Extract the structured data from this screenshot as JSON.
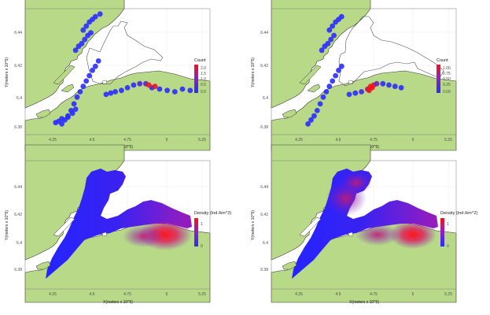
{
  "chart_data": [
    {
      "type": "scatter",
      "title": "",
      "xlabel": "X(meters x 10^5)",
      "ylabel": "Y(meters x 10^5)",
      "xticks": [
        "4.25",
        "4.5",
        "4.75",
        "5",
        "5.25"
      ],
      "yticks": [
        "6.44",
        "6.42",
        "6.4",
        "6.38"
      ],
      "xlim": [
        4.07,
        5.28
      ],
      "ylim": [
        6.362,
        6.456
      ],
      "legend": {
        "title": "Count",
        "labels": [
          "2.0",
          "1.5",
          "1.0",
          "0.5",
          "0.0"
        ],
        "placement": "right"
      },
      "x": [
        4.31,
        4.33,
        4.35,
        4.37,
        4.39,
        4.41,
        4.43,
        4.45,
        4.47,
        4.49,
        4.51,
        4.53,
        4.55,
        4.4,
        4.42,
        4.44,
        4.46,
        4.48,
        4.5,
        4.45,
        4.47,
        4.49,
        4.51,
        4.53,
        4.56,
        4.6,
        4.63,
        4.66,
        4.7,
        4.74,
        4.78,
        4.82,
        4.86,
        4.9,
        4.95,
        5.0,
        5.05,
        5.1,
        5.15,
        4.88,
        4.92,
        4.27,
        4.29,
        4.31,
        4.35,
        4.38,
        4.4
      ],
      "y": [
        6.37,
        6.373,
        6.376,
        6.38,
        6.385,
        6.39,
        6.394,
        6.398,
        6.402,
        6.406,
        6.41,
        6.413,
        6.417,
        6.425,
        6.428,
        6.43,
        6.433,
        6.436,
        6.438,
        6.44,
        6.443,
        6.446,
        6.448,
        6.45,
        6.452,
        6.392,
        6.393,
        6.394,
        6.395,
        6.397,
        6.399,
        6.4,
        6.4,
        6.397,
        6.396,
        6.395,
        6.394,
        6.396,
        6.395,
        6.399,
        6.398,
        6.371,
        6.372,
        6.374,
        6.375,
        6.378,
        6.381
      ],
      "values": [
        0,
        0,
        0,
        0,
        0,
        0,
        0,
        0,
        0,
        0,
        0,
        0,
        0,
        0,
        0,
        0,
        0,
        0,
        0,
        0,
        0,
        0,
        0,
        0,
        0,
        0,
        0,
        0,
        0,
        0,
        0,
        0.3,
        0.3,
        0,
        0,
        0,
        0,
        0,
        0,
        2,
        1.8,
        0,
        0,
        0,
        0,
        0,
        0
      ]
    },
    {
      "type": "scatter",
      "title": "",
      "xlabel": "X(meters x 10^5)",
      "ylabel": "Y(meters x 10^5)",
      "xticks": [
        "4.25",
        "4.5",
        "4.75",
        "5",
        "5.25"
      ],
      "yticks": [
        "6.44",
        "6.42",
        "6.4",
        "6.38"
      ],
      "xlim": [
        4.07,
        5.28
      ],
      "ylim": [
        6.362,
        6.456
      ],
      "legend": {
        "title": "Count",
        "labels": [
          "1.00",
          "0.75",
          "0.50",
          "0.25",
          "0.00"
        ],
        "placement": "right"
      },
      "x": [
        4.31,
        4.33,
        4.35,
        4.37,
        4.39,
        4.41,
        4.43,
        4.45,
        4.47,
        4.49,
        4.51,
        4.53,
        4.4,
        4.42,
        4.44,
        4.46,
        4.48,
        4.45,
        4.47,
        4.49,
        4.51,
        4.53,
        4.58,
        4.62,
        4.66,
        4.7,
        4.72,
        4.74,
        4.76,
        4.8,
        4.84,
        4.88,
        4.92,
        4.71,
        4.73
      ],
      "y": [
        6.37,
        6.373,
        6.376,
        6.38,
        6.385,
        6.39,
        6.394,
        6.398,
        6.402,
        6.406,
        6.41,
        6.413,
        6.425,
        6.428,
        6.43,
        6.433,
        6.436,
        6.44,
        6.443,
        6.446,
        6.448,
        6.45,
        6.392,
        6.393,
        6.394,
        6.396,
        6.398,
        6.399,
        6.4,
        6.4,
        6.399,
        6.398,
        6.397,
        6.395,
        6.397
      ],
      "values": [
        0,
        0,
        0,
        0,
        0,
        0,
        0,
        0,
        0,
        0,
        0,
        0,
        0,
        0,
        0,
        0,
        0,
        0,
        0,
        0,
        0,
        0,
        0,
        0,
        0.1,
        0.6,
        1.0,
        0.8,
        0.3,
        0,
        0,
        0,
        0,
        0.9,
        1.0
      ]
    },
    {
      "type": "heatmap",
      "title": "",
      "xlabel": "X(meters x 10^5)",
      "ylabel": "Y(meters x 10^5)",
      "xticks": [
        "4.25",
        "4.5",
        "4.75",
        "5",
        "5.25"
      ],
      "yticks": [
        "6.44",
        "6.42",
        "6.4",
        "6.38"
      ],
      "xlim": [
        4.07,
        5.28
      ],
      "ylim": [
        6.362,
        6.456
      ],
      "legend": {
        "title": "Density (Ind./km^2)",
        "labels": [
          "1",
          "0"
        ],
        "placement": "right"
      },
      "hotspots": [
        {
          "x": 5.08,
          "y": 6.403,
          "value": 1.2
        },
        {
          "x": 4.98,
          "y": 6.401,
          "value": 0.6
        }
      ]
    },
    {
      "type": "heatmap",
      "title": "",
      "xlabel": "X(meters x 10^5)",
      "ylabel": "Y(meters x 10^5)",
      "xticks": [
        "4.25",
        "4.5",
        "4.75",
        "5",
        "5.25"
      ],
      "yticks": [
        "6.44",
        "6.42",
        "6.4",
        "6.38"
      ],
      "xlim": [
        4.07,
        5.28
      ],
      "ylim": [
        6.362,
        6.456
      ],
      "legend": {
        "title": "Density (Ind./km^2)",
        "labels": [
          "1",
          "0"
        ],
        "placement": "right"
      },
      "hotspots": [
        {
          "x": 5.08,
          "y": 6.403,
          "value": 1.1
        },
        {
          "x": 4.92,
          "y": 6.401,
          "value": 0.8
        },
        {
          "x": 4.66,
          "y": 6.428,
          "value": 0.7
        },
        {
          "x": 4.71,
          "y": 6.442,
          "value": 0.6
        }
      ]
    }
  ]
}
